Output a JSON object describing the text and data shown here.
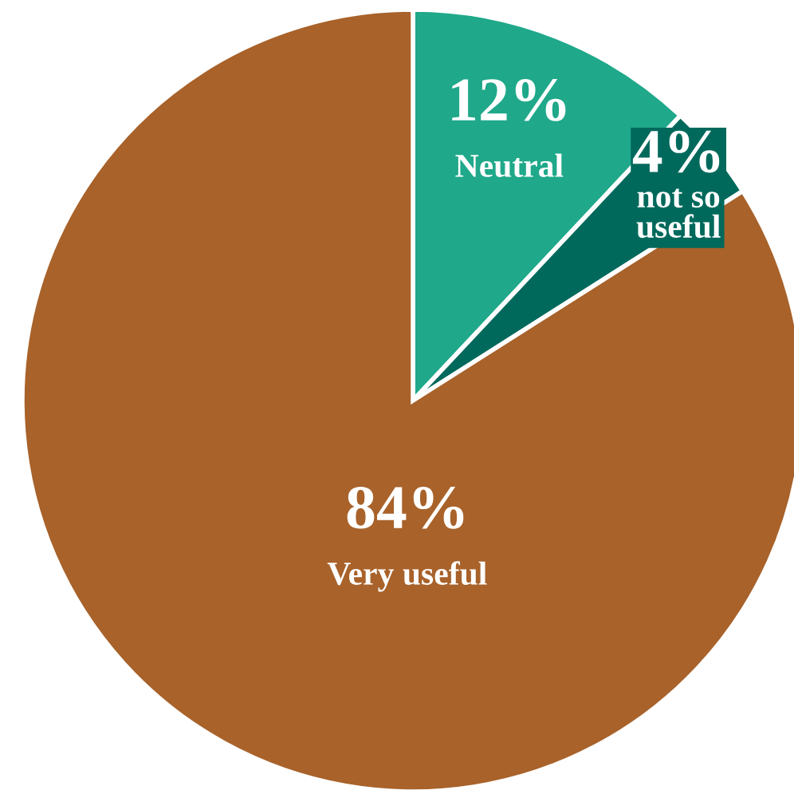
{
  "chart_data": {
    "type": "pie",
    "categories": [
      "Neutral",
      "not so\nuseful",
      "Very useful"
    ],
    "values": [
      12,
      4,
      84
    ],
    "colors": [
      "#1fa88a",
      "#00695c",
      "#a8622a"
    ],
    "value_labels": [
      "12%",
      "4%",
      "84%"
    ],
    "legend": false
  }
}
